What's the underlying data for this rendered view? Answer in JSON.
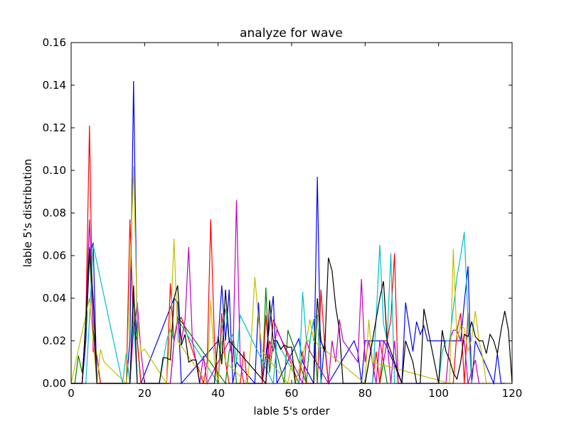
{
  "chart_data": {
    "type": "line",
    "title": "analyze for wave",
    "xlabel": "lable 5's order",
    "ylabel": "lable 5's distribution",
    "xlim": [
      0,
      120
    ],
    "ylim": [
      0,
      0.16
    ],
    "xticks": [
      "0",
      "20",
      "40",
      "60",
      "80",
      "100",
      "120"
    ],
    "yticks": [
      "0.00",
      "0.02",
      "0.04",
      "0.06",
      "0.08",
      "0.10",
      "0.12",
      "0.14",
      "0.16"
    ],
    "grid": false,
    "legend": "none",
    "series": [
      {
        "color": "#0000ff",
        "x": [
          0,
          3,
          4,
          5,
          6,
          7,
          15,
          16,
          17,
          18,
          19,
          28,
          29,
          30,
          40,
          41,
          42,
          43,
          44,
          45,
          50,
          51,
          52,
          55,
          56,
          62,
          63,
          66,
          67,
          68,
          69,
          70,
          77,
          78,
          79,
          80,
          85,
          86,
          90,
          91,
          93,
          94,
          95,
          96,
          97,
          106,
          107,
          108,
          109,
          110,
          115,
          116,
          117,
          118
        ],
        "y": [
          0,
          0,
          0.02,
          0.06,
          0.066,
          0,
          0,
          0.02,
          0.142,
          0.02,
          0,
          0.04,
          0.038,
          0,
          0.02,
          0.046,
          0.02,
          0.044,
          0,
          0.01,
          0,
          0.038,
          0,
          0.041,
          0,
          0.021,
          0.01,
          0,
          0.097,
          0,
          0.02,
          0,
          0.02,
          0.015,
          0,
          0.02,
          0.02,
          0.017,
          0,
          0.038,
          0.015,
          0.029,
          0.023,
          0.027,
          0.02,
          0.02,
          0.038,
          0.055,
          0,
          0.02,
          0,
          0.014,
          0,
          0
        ]
      },
      {
        "color": "#008000",
        "x": [
          0,
          1,
          2,
          3,
          4,
          5,
          6,
          8,
          16,
          17,
          18,
          19,
          27,
          28,
          29,
          30,
          42,
          43,
          44,
          45,
          52,
          53,
          54,
          55,
          58,
          59,
          60,
          64,
          65,
          66,
          67,
          84,
          85,
          86
        ],
        "y": [
          0,
          0,
          0.013,
          0.005,
          0.024,
          0.064,
          0.025,
          0,
          0,
          0.04,
          0.02,
          0,
          0,
          0.02,
          0.031,
          0.029,
          0,
          0.015,
          0.02,
          0,
          0,
          0.045,
          0.005,
          0.02,
          0,
          0.025,
          0.02,
          0,
          0.02,
          0.03,
          0,
          0,
          0.01,
          0
        ]
      },
      {
        "color": "#ff0000",
        "x": [
          0,
          3,
          4,
          5,
          6,
          7,
          8,
          15,
          16,
          17,
          18,
          19,
          26,
          27,
          28,
          29,
          30,
          36,
          37,
          38,
          39,
          40,
          41,
          42,
          43,
          46,
          47,
          48,
          52,
          53,
          54,
          55,
          62,
          63,
          64,
          67,
          68,
          69,
          70,
          82,
          83,
          84,
          85,
          86,
          87,
          88,
          89,
          104,
          105,
          106,
          107,
          108,
          109
        ],
        "y": [
          0,
          0,
          0.03,
          0.121,
          0.015,
          0.013,
          0,
          0,
          0.077,
          0.025,
          0.02,
          0,
          0,
          0.047,
          0.02,
          0.029,
          0.031,
          0,
          0.01,
          0.077,
          0.02,
          0,
          0.033,
          0.01,
          0,
          0,
          0.015,
          0,
          0,
          0.032,
          0.01,
          0.03,
          0,
          0.015,
          0,
          0,
          0.044,
          0.018,
          0,
          0,
          0.015,
          0,
          0.02,
          0.02,
          0.03,
          0.061,
          0,
          0,
          0.025,
          0.033,
          0,
          0.033,
          0
        ]
      },
      {
        "color": "#00bfbf",
        "x": [
          0,
          4,
          5,
          6,
          14,
          15,
          16,
          17,
          18,
          24,
          25,
          26,
          27,
          28,
          29,
          40,
          41,
          42,
          43,
          44,
          45,
          46,
          55,
          56,
          62,
          63,
          64,
          65,
          66,
          67,
          68,
          82,
          83,
          84,
          85,
          86,
          87,
          88,
          100,
          101,
          102,
          103,
          104,
          105,
          106,
          107,
          108,
          109
        ],
        "y": [
          0,
          0,
          0.03,
          0.065,
          0,
          0.014,
          0,
          0.03,
          0,
          0,
          0.01,
          0.02,
          0.026,
          0.02,
          0.03,
          0,
          0.026,
          0.035,
          0.02,
          0.023,
          0.01,
          0.032,
          0,
          0.02,
          0,
          0.043,
          0.02,
          0.02,
          0.03,
          0.032,
          0,
          0,
          0.03,
          0.065,
          0.028,
          0.02,
          0.061,
          0,
          0,
          0.015,
          0.02,
          0.02,
          0.035,
          0.05,
          0.06,
          0.071,
          0.03,
          0
        ]
      },
      {
        "color": "#bf00bf",
        "x": [
          0,
          3,
          4,
          5,
          6,
          7,
          16,
          17,
          18,
          19,
          20,
          27,
          28,
          29,
          30,
          31,
          32,
          33,
          35,
          36,
          37,
          43,
          44,
          45,
          46,
          47,
          53,
          54,
          55,
          56,
          63,
          64,
          65,
          70,
          71,
          72,
          73,
          74,
          78,
          79,
          80,
          81,
          82,
          83,
          84,
          85,
          86,
          87,
          88,
          89,
          102,
          103,
          104,
          105,
          106,
          107,
          108,
          110,
          111
        ],
        "y": [
          0,
          0,
          0.03,
          0.077,
          0.025,
          0,
          0,
          0.025,
          0.038,
          0.015,
          0,
          0,
          0.02,
          0.03,
          0.02,
          0.03,
          0.064,
          0.02,
          0,
          0.013,
          0,
          0.02,
          0.01,
          0.086,
          0.01,
          0,
          0,
          0.02,
          0.015,
          0.025,
          0,
          0.02,
          0.015,
          0,
          0.02,
          0.01,
          0.03,
          0.02,
          0.01,
          0.049,
          0.01,
          0.02,
          0.01,
          0,
          0.02,
          0.01,
          0.02,
          0,
          0.02,
          0,
          0,
          0.02,
          0.025,
          0.025,
          0.02,
          0.02,
          0,
          0.011,
          0
        ]
      },
      {
        "color": "#bfbf00",
        "x": [
          0,
          5,
          6,
          7,
          8,
          9,
          15,
          16,
          17,
          18,
          19,
          20,
          26,
          27,
          28,
          29,
          37,
          38,
          39,
          40,
          41,
          42,
          48,
          49,
          50,
          51,
          52,
          59,
          60,
          61,
          64,
          65,
          66,
          80,
          81,
          82,
          103,
          104,
          105,
          106,
          107,
          108,
          109,
          110,
          111,
          112,
          113
        ],
        "y": [
          0,
          0.04,
          0.02,
          0,
          0.016,
          0.01,
          0,
          0.05,
          0.102,
          0.03,
          0.015,
          0.016,
          0,
          0.025,
          0.068,
          0.02,
          0,
          0.039,
          0.01,
          0,
          0.02,
          0.01,
          0,
          0.02,
          0.05,
          0.03,
          0.015,
          0,
          0.01,
          0,
          0.02,
          0.03,
          0.02,
          0,
          0.03,
          0.01,
          0,
          0.063,
          0.02,
          0.027,
          0.026,
          0.015,
          0.021,
          0.034,
          0.02,
          0.012,
          0
        ]
      },
      {
        "color": "#000000",
        "x": [
          0,
          3,
          4,
          5,
          6,
          7,
          16,
          17,
          18,
          24,
          25,
          26,
          27,
          28,
          29,
          30,
          31,
          32,
          33,
          34,
          35,
          36,
          39,
          40,
          41,
          42,
          43,
          44,
          53,
          54,
          55,
          56,
          57,
          58,
          59,
          60,
          61,
          66,
          67,
          68,
          69,
          70,
          71,
          72,
          73,
          74,
          80,
          81,
          82,
          83,
          84,
          85,
          86,
          90,
          91,
          92,
          93,
          94,
          95,
          96,
          100,
          101,
          102,
          103,
          104,
          105,
          106,
          107,
          108,
          109,
          110,
          111,
          112,
          113,
          114,
          115,
          116,
          117,
          118,
          119,
          120
        ],
        "y": [
          0,
          0,
          0.03,
          0.063,
          0.04,
          0,
          0,
          0.046,
          0,
          0,
          0.012,
          0.012,
          0.011,
          0.04,
          0.046,
          0.018,
          0.023,
          0.01,
          0.011,
          0.011,
          0,
          0,
          0,
          0.022,
          0.009,
          0.044,
          0.02,
          0.018,
          0,
          0.039,
          0.02,
          0.02,
          0.016,
          0.018,
          0.017,
          0.017,
          0,
          0,
          0.04,
          0.02,
          0.015,
          0.059,
          0.053,
          0.036,
          0.025,
          0,
          0,
          0.01,
          0.02,
          0.03,
          0.04,
          0.048,
          0.02,
          0,
          0.02,
          0.015,
          0.01,
          0,
          0,
          0.035,
          0,
          0.025,
          0.015,
          0.011,
          0.005,
          0.002,
          0.01,
          0.023,
          0.022,
          0.029,
          0.022,
          0.02,
          0.02,
          0.014,
          0.023,
          0.02,
          0.014,
          0.025,
          0.034,
          0.025,
          0
        ]
      }
    ]
  }
}
